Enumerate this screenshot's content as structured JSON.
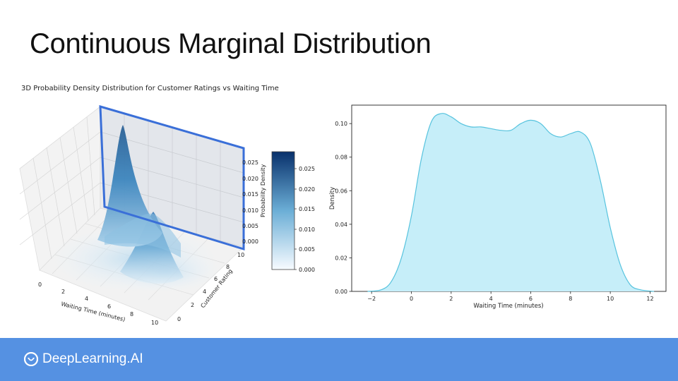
{
  "slide": {
    "title": "Continuous Marginal Distribution"
  },
  "footer": {
    "brand": "DeepLearning.AI",
    "logo_icon": "deeplearning-ai-logo-icon",
    "background": "#5591e2"
  },
  "chart_data": [
    {
      "type": "surface3d",
      "title": "3D Probability Density Distribution for Customer Ratings vs Waiting Time",
      "xlabel": "Waiting Time (minutes)",
      "ylabel": "Customer Rating",
      "zlabel": "Probability Density",
      "x_ticks": [
        "0",
        "2",
        "4",
        "6",
        "8",
        "10"
      ],
      "y_ticks": [
        "0",
        "2",
        "4",
        "6",
        "8",
        "10"
      ],
      "z_ticks": [
        "0.000",
        "0.005",
        "0.010",
        "0.015",
        "0.020",
        "0.025"
      ],
      "colorbar_ticks": [
        "0.000",
        "0.005",
        "0.010",
        "0.015",
        "0.020",
        "0.025"
      ],
      "colormap": [
        "#f7fbff",
        "#6baed6",
        "#08306b"
      ],
      "slice_plane_color": "#3a6fd8",
      "zlim": [
        0,
        0.028
      ],
      "xlim": [
        0,
        10
      ],
      "ylim": [
        0,
        10
      ]
    },
    {
      "type": "area",
      "xlabel": "Waiting Time (minutes)",
      "ylabel": "Density",
      "xlim": [
        -3,
        12.8
      ],
      "ylim": [
        0,
        0.111
      ],
      "x_ticks": [
        -2,
        0,
        2,
        4,
        6,
        8,
        10,
        12
      ],
      "y_ticks": [
        0.0,
        0.02,
        0.04,
        0.06,
        0.08,
        0.1
      ],
      "x_tick_labels": [
        "−2",
        "0",
        "2",
        "4",
        "6",
        "8",
        "10",
        "12"
      ],
      "y_tick_labels": [
        "0.00",
        "0.02",
        "0.04",
        "0.06",
        "0.08",
        "0.10"
      ],
      "fill_color": "#c6eef9",
      "line_color": "#57c3de",
      "x": [
        -2.2,
        -1.5,
        -1.0,
        -0.5,
        0.0,
        0.5,
        1.0,
        1.5,
        2.0,
        2.5,
        3.0,
        3.5,
        4.0,
        4.5,
        5.0,
        5.5,
        6.0,
        6.5,
        7.0,
        7.5,
        8.0,
        8.5,
        9.0,
        9.5,
        10.0,
        10.5,
        11.0,
        11.5,
        12.2
      ],
      "y": [
        0.0,
        0.001,
        0.006,
        0.02,
        0.045,
        0.079,
        0.101,
        0.106,
        0.104,
        0.1,
        0.098,
        0.098,
        0.097,
        0.096,
        0.096,
        0.1,
        0.102,
        0.1,
        0.094,
        0.092,
        0.094,
        0.095,
        0.088,
        0.066,
        0.038,
        0.016,
        0.004,
        0.001,
        0.0
      ]
    }
  ]
}
